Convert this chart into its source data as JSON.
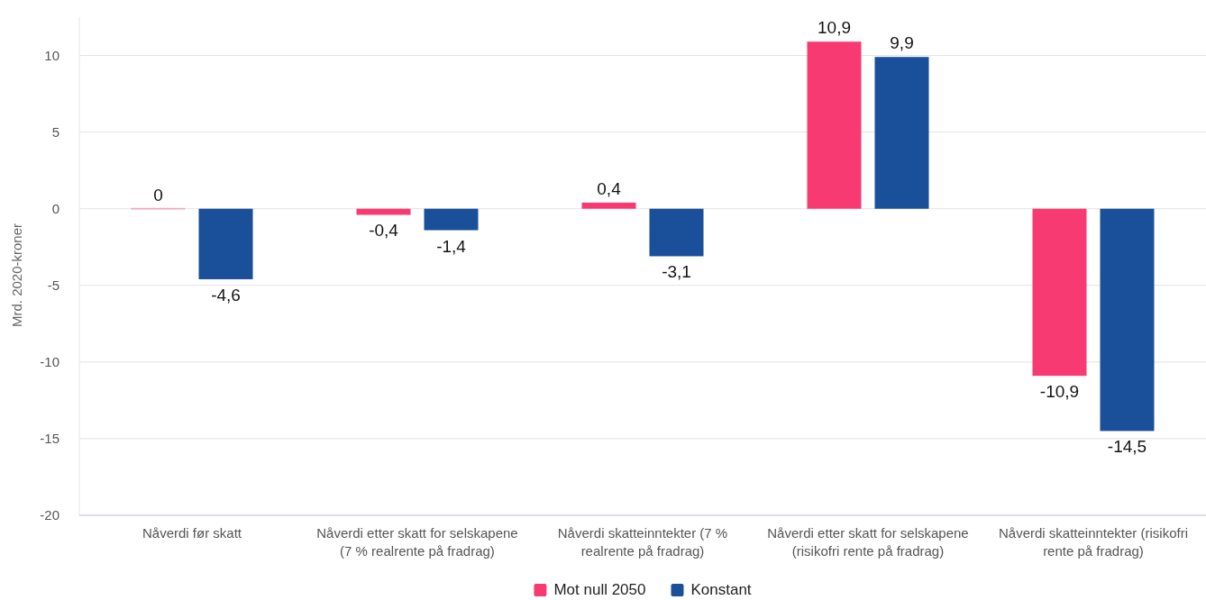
{
  "chart_data": {
    "type": "bar",
    "ylabel": "Mrd. 2020-kroner",
    "categories": [
      "Nåverdi før skatt",
      "Nåverdi etter skatt for selskapene (7 % realrente på fradrag)",
      "Nåverdi skatteinntekter (7 % realrente på fradrag)",
      "Nåverdi etter skatt for selskapene (risikofri rente på fradrag)",
      "Nåverdi skatteinntekter (risikofri rente på fradrag)"
    ],
    "series": [
      {
        "name": "Mot null 2050",
        "color": "#f83a72",
        "values": [
          0,
          -0.4,
          0.4,
          10.9,
          -10.9
        ],
        "value_labels": [
          "0",
          "-0,4",
          "0,4",
          "10,9",
          "-10,9"
        ]
      },
      {
        "name": "Konstant",
        "color": "#1a4f99",
        "values": [
          -4.6,
          -1.4,
          -3.1,
          9.9,
          -14.5
        ],
        "value_labels": [
          "-4,6",
          "-1,4",
          "-3,1",
          "9,9",
          "-14,5"
        ]
      }
    ],
    "ylim": [
      -20,
      12.5
    ],
    "yticks": [
      {
        "value": -20,
        "label": "-20"
      },
      {
        "value": -15,
        "label": "-15"
      },
      {
        "value": -10,
        "label": "-10"
      },
      {
        "value": -5,
        "label": "-5"
      },
      0,
      5,
      10
    ],
    "grid": "y",
    "legend": "bottom"
  }
}
